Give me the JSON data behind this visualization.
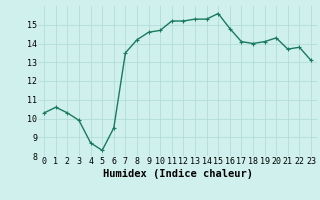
{
  "x": [
    0,
    1,
    2,
    3,
    4,
    5,
    6,
    7,
    8,
    9,
    10,
    11,
    12,
    13,
    14,
    15,
    16,
    17,
    18,
    19,
    20,
    21,
    22,
    23
  ],
  "y": [
    10.3,
    10.6,
    10.3,
    9.9,
    8.7,
    8.3,
    9.5,
    13.5,
    14.2,
    14.6,
    14.7,
    15.2,
    15.2,
    15.3,
    15.3,
    15.6,
    14.8,
    14.1,
    14.0,
    14.1,
    14.3,
    13.7,
    13.8,
    13.1
  ],
  "line_color": "#1a7a5e",
  "marker": "+",
  "marker_size": 3,
  "background_color": "#cff0ec",
  "grid_color": "#b0ddd8",
  "xlabel": "Humidex (Indice chaleur)",
  "ylim": [
    8,
    16
  ],
  "xlim": [
    -0.5,
    23.5
  ],
  "yticks": [
    8,
    9,
    10,
    11,
    12,
    13,
    14,
    15
  ],
  "xticks": [
    0,
    1,
    2,
    3,
    4,
    5,
    6,
    7,
    8,
    9,
    10,
    11,
    12,
    13,
    14,
    15,
    16,
    17,
    18,
    19,
    20,
    21,
    22,
    23
  ],
  "tick_fontsize": 6,
  "xlabel_fontsize": 7.5,
  "line_width": 1.0,
  "marker_edge_width": 0.8
}
